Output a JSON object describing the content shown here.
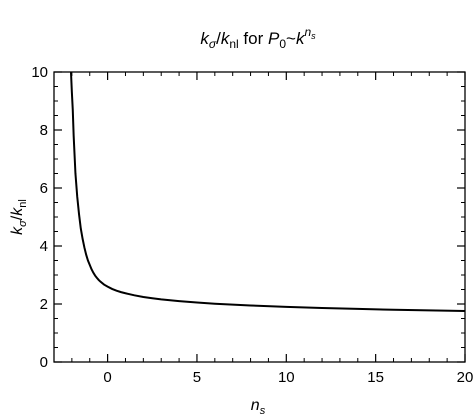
{
  "chart_data": {
    "type": "line",
    "title_parts": {
      "k": "k",
      "sigma": "σ",
      "slash": "/",
      "k2": "k",
      "nl": "nl",
      "for": " for ",
      "P": "P",
      "zero": "0",
      "tilde": "~",
      "k3": "k",
      "n": "n",
      "s": "s"
    },
    "xlabel_parts": {
      "n": "n",
      "s": "s"
    },
    "ylabel_parts": {
      "k": "k",
      "sigma": "σ",
      "slash": "/",
      "k2": "k",
      "nl": "nl"
    },
    "xlim": [
      -3,
      20
    ],
    "ylim": [
      0,
      10
    ],
    "x_ticks": [
      0,
      5,
      10,
      15,
      20
    ],
    "x_tick_labels": [
      "0",
      "5",
      "10",
      "15",
      "20"
    ],
    "y_ticks": [
      0,
      2,
      4,
      6,
      8,
      10
    ],
    "y_tick_labels": [
      "0",
      "2",
      "4",
      "6",
      "8",
      "10"
    ],
    "grid": false,
    "series": [
      {
        "x": [
          -2.05,
          -2.0,
          -1.95,
          -1.9,
          -1.8,
          -1.7,
          -1.6,
          -1.5,
          -1.4,
          -1.3,
          -1.2,
          -1.1,
          -1.0,
          -0.9,
          -0.8,
          -0.7,
          -0.6,
          -0.5,
          -0.4,
          -0.2,
          0.0,
          0.25,
          0.5,
          0.75,
          1.0,
          1.5,
          2.0,
          2.5,
          3.0,
          4.0,
          5.0,
          6.0,
          7.0,
          8.0,
          10.0,
          12.0,
          14.0,
          16.0,
          18.0,
          20.0
        ],
        "y": [
          10.0,
          9.3,
          8.7,
          7.8,
          6.5,
          5.7,
          5.1,
          4.6,
          4.25,
          3.95,
          3.7,
          3.5,
          3.35,
          3.2,
          3.08,
          2.98,
          2.9,
          2.83,
          2.77,
          2.67,
          2.6,
          2.52,
          2.46,
          2.41,
          2.37,
          2.3,
          2.24,
          2.2,
          2.16,
          2.1,
          2.05,
          2.01,
          1.98,
          1.95,
          1.9,
          1.86,
          1.83,
          1.8,
          1.78,
          1.76
        ]
      }
    ]
  }
}
